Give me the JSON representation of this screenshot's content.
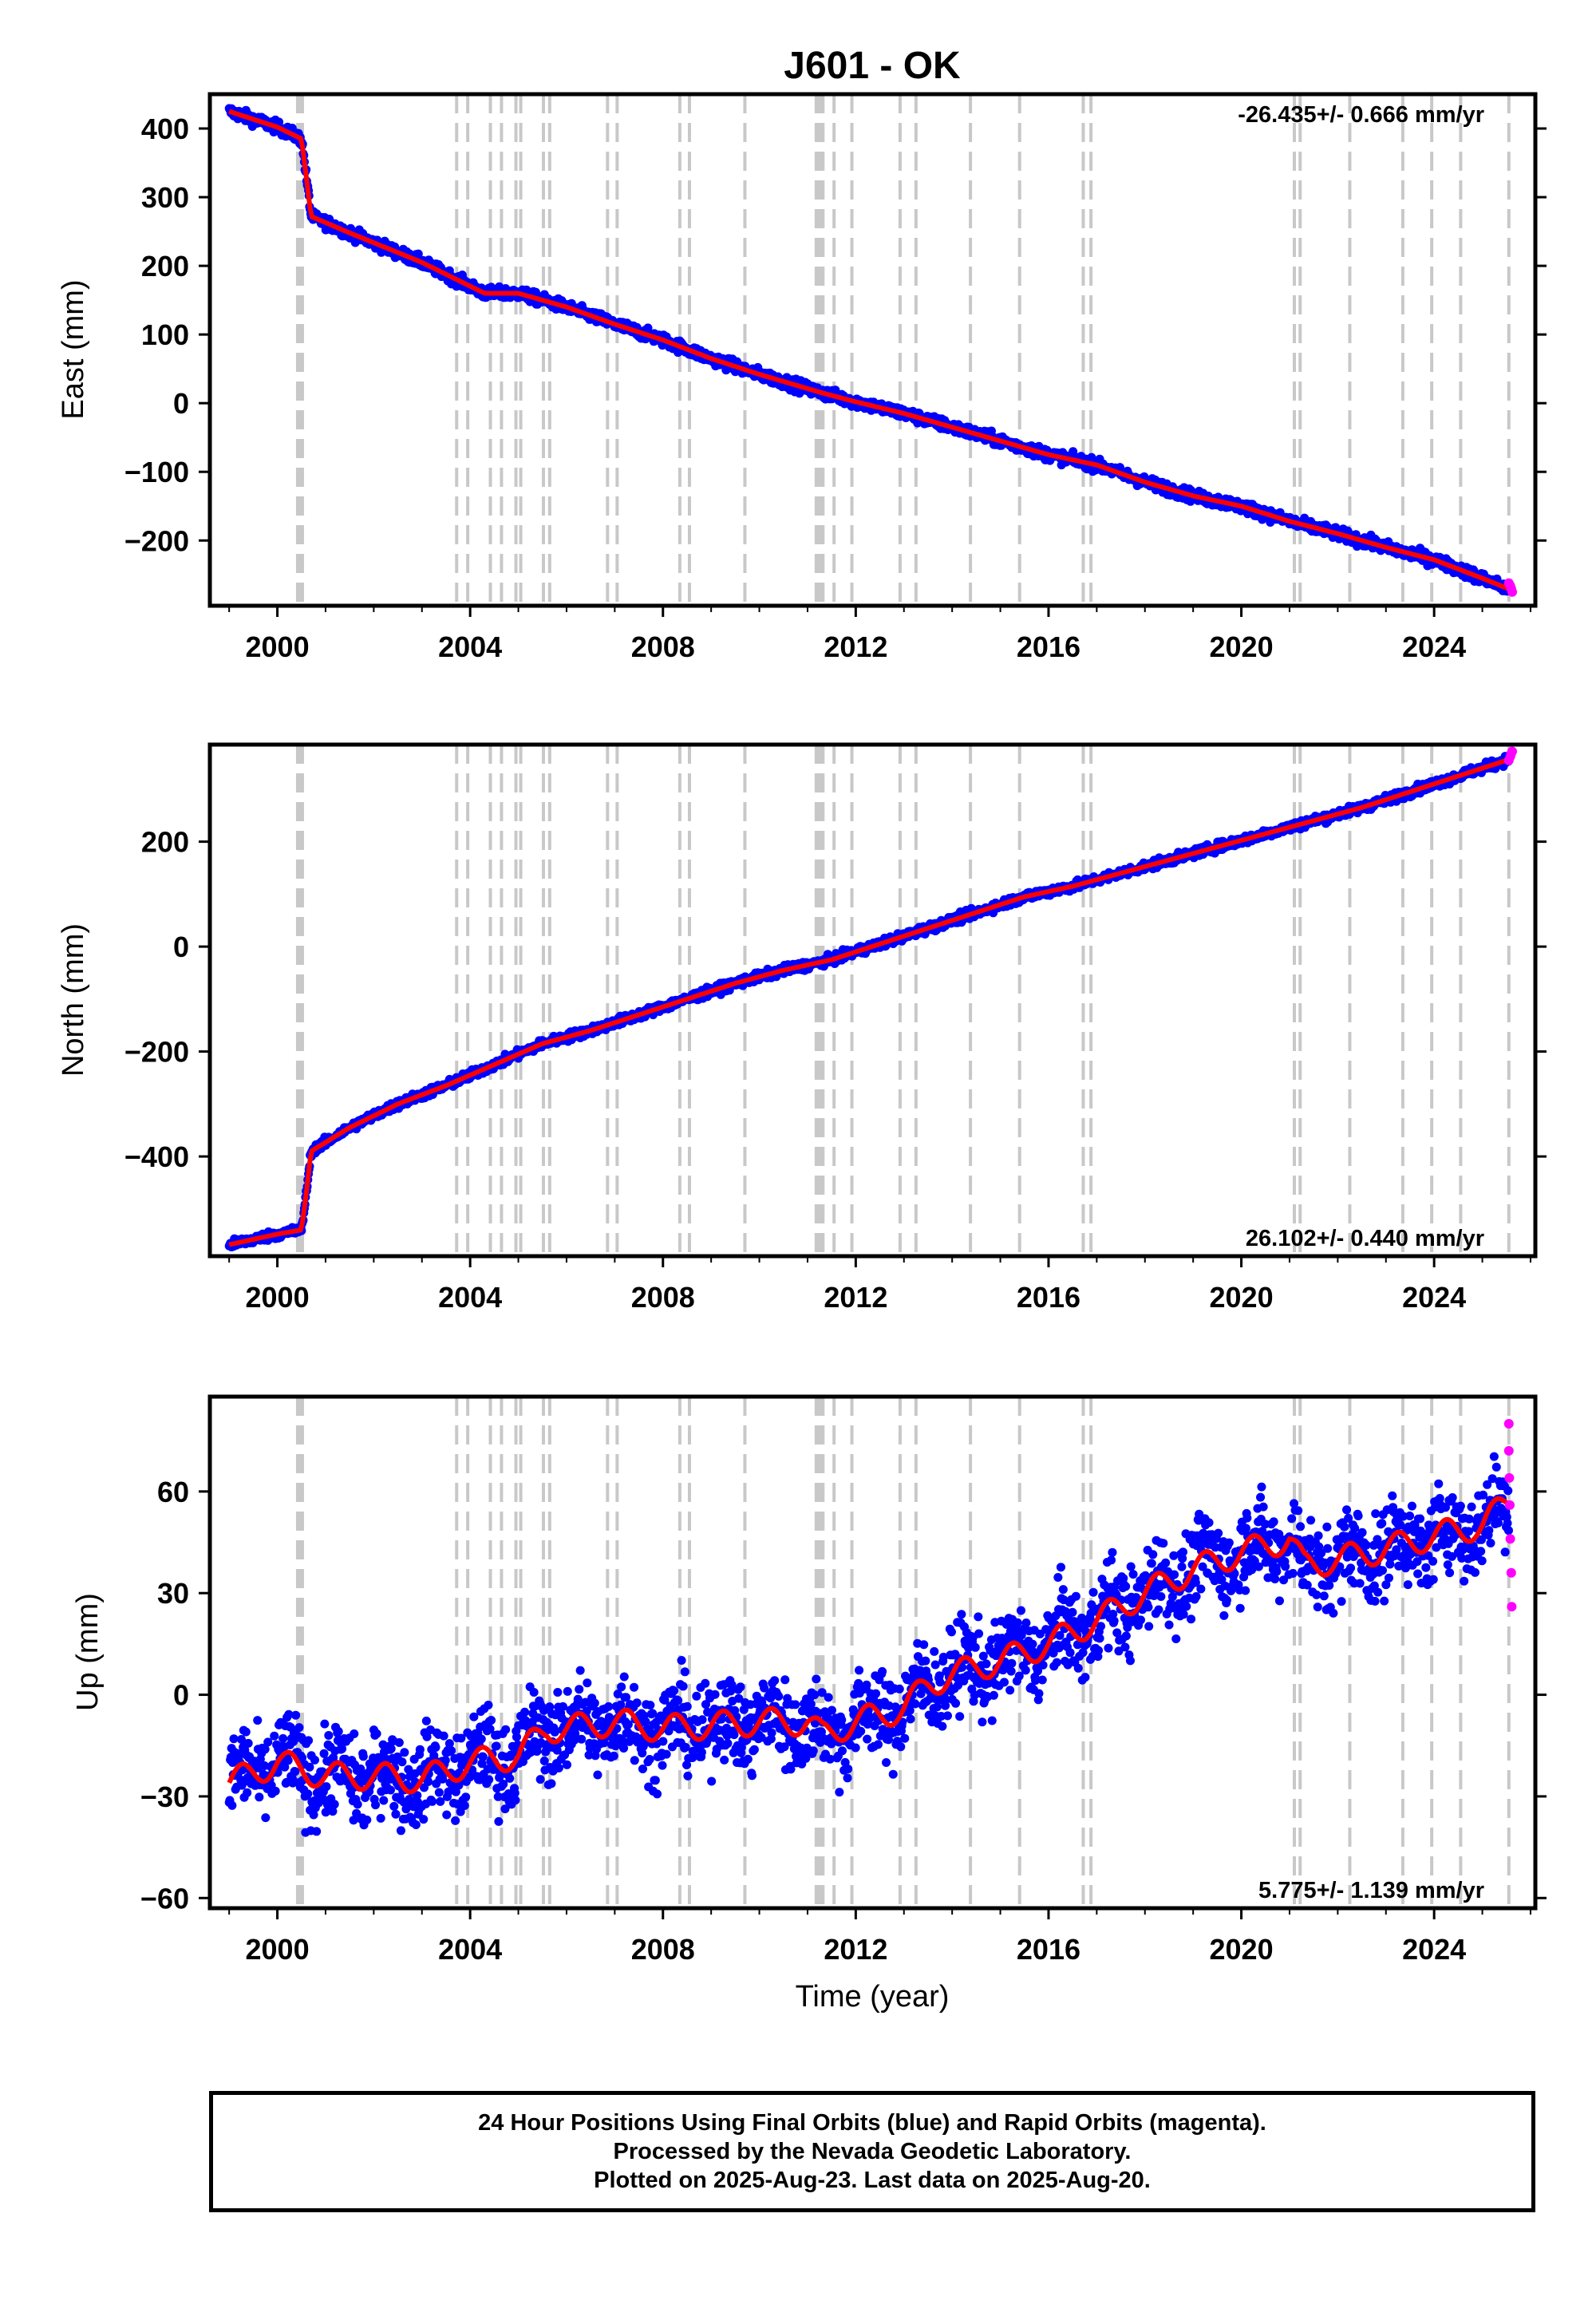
{
  "title": "J601 - OK",
  "caption": {
    "line1": "24 Hour Positions Using Final Orbits (blue) and Rapid Orbits (magenta).",
    "line2": "Processed by the Nevada Geodetic Laboratory.",
    "line3": "Plotted on 2025-Aug-23. Last data on 2025-Aug-20."
  },
  "colors": {
    "final_orbits": "#0000ff",
    "rapid_orbits": "#ff00ff",
    "model": "#ff0000",
    "equipment_change_lines": "#c8c8c8"
  },
  "event_lines": [
    2000.42,
    2000.47,
    2000.52,
    2003.72,
    2003.95,
    2004.42,
    2004.65,
    2004.95,
    2005.05,
    2005.52,
    2005.65,
    2006.85,
    2007.05,
    2008.35,
    2008.55,
    2009.7,
    2011.18,
    2011.22,
    2011.27,
    2011.32,
    2011.55,
    2011.92,
    2012.92,
    2013.25,
    2014.38,
    2015.4,
    2016.72,
    2016.88,
    2021.1,
    2021.22,
    2022.25,
    2023.35,
    2023.95,
    2024.55,
    2025.55
  ],
  "chart_data": [
    {
      "type": "scatter",
      "name": "east",
      "ylabel": "East (mm)",
      "xlabel": "",
      "rate_text": "-26.435+/- 0.666 mm/yr",
      "rate_position": "top-right",
      "xlim": [
        1998.6,
        2026.1
      ],
      "ylim": [
        -295,
        450
      ],
      "x_ticks": [
        2000,
        2004,
        2008,
        2012,
        2016,
        2020,
        2024
      ],
      "x_tick_labels": [
        "2000",
        "2004",
        "2008",
        "2012",
        "2016",
        "2020",
        "2024"
      ],
      "y_ticks": [
        -200,
        -100,
        0,
        100,
        200,
        300,
        400
      ],
      "y_tick_labels": [
        "−200",
        "−100",
        "0",
        "100",
        "200",
        "300",
        "400"
      ],
      "trend": [
        [
          1999.0,
          425
        ],
        [
          2000.0,
          402
        ],
        [
          2000.5,
          385
        ],
        [
          2000.6,
          330
        ],
        [
          2000.7,
          272
        ],
        [
          2001.5,
          248
        ],
        [
          2003.0,
          205
        ],
        [
          2004.3,
          160
        ],
        [
          2005.0,
          160
        ],
        [
          2006.0,
          140
        ],
        [
          2007.0,
          115
        ],
        [
          2008.0,
          92
        ],
        [
          2009.0,
          65
        ],
        [
          2010.0,
          42
        ],
        [
          2011.3,
          15
        ],
        [
          2012.0,
          2
        ],
        [
          2013.0,
          -15
        ],
        [
          2014.0,
          -35
        ],
        [
          2015.0,
          -55
        ],
        [
          2016.0,
          -75
        ],
        [
          2017.0,
          -90
        ],
        [
          2018.0,
          -115
        ],
        [
          2019.0,
          -135
        ],
        [
          2020.0,
          -150
        ],
        [
          2021.0,
          -172
        ],
        [
          2022.0,
          -190
        ],
        [
          2023.0,
          -210
        ],
        [
          2024.0,
          -228
        ],
        [
          2025.0,
          -255
        ],
        [
          2025.6,
          -272
        ]
      ],
      "scatter_noise": 6,
      "rapid_points": [
        [
          2025.55,
          -262
        ],
        [
          2025.58,
          -266
        ],
        [
          2025.6,
          -270
        ],
        [
          2025.62,
          -275
        ]
      ]
    },
    {
      "type": "scatter",
      "name": "north",
      "ylabel": "North (mm)",
      "xlabel": "",
      "rate_text": "26.102+/- 0.440 mm/yr",
      "rate_position": "bottom-right",
      "xlim": [
        1998.6,
        2026.1
      ],
      "ylim": [
        -590,
        385
      ],
      "x_ticks": [
        2000,
        2004,
        2008,
        2012,
        2016,
        2020,
        2024
      ],
      "x_tick_labels": [
        "2000",
        "2004",
        "2008",
        "2012",
        "2016",
        "2020",
        "2024"
      ],
      "y_ticks": [
        -400,
        -200,
        0,
        200
      ],
      "y_tick_labels": [
        "−400",
        "−200",
        "0",
        "200"
      ],
      "trend": [
        [
          1999.0,
          -568
        ],
        [
          1999.5,
          -558
        ],
        [
          2000.0,
          -548
        ],
        [
          2000.5,
          -540
        ],
        [
          2000.6,
          -470
        ],
        [
          2000.7,
          -390
        ],
        [
          2001.5,
          -345
        ],
        [
          2002.5,
          -300
        ],
        [
          2003.5,
          -265
        ],
        [
          2004.5,
          -225
        ],
        [
          2005.5,
          -185
        ],
        [
          2006.5,
          -160
        ],
        [
          2007.5,
          -130
        ],
        [
          2008.5,
          -100
        ],
        [
          2009.5,
          -70
        ],
        [
          2010.5,
          -45
        ],
        [
          2011.5,
          -25
        ],
        [
          2012.5,
          5
        ],
        [
          2013.5,
          35
        ],
        [
          2014.5,
          65
        ],
        [
          2015.5,
          95
        ],
        [
          2016.5,
          115
        ],
        [
          2017.5,
          140
        ],
        [
          2018.5,
          165
        ],
        [
          2019.5,
          190
        ],
        [
          2020.5,
          215
        ],
        [
          2021.5,
          240
        ],
        [
          2022.5,
          265
        ],
        [
          2023.5,
          295
        ],
        [
          2024.5,
          325
        ],
        [
          2025.6,
          358
        ]
      ],
      "scatter_noise": 6,
      "rapid_points": [
        [
          2025.55,
          355
        ],
        [
          2025.58,
          362
        ],
        [
          2025.6,
          368
        ],
        [
          2025.62,
          372
        ]
      ]
    },
    {
      "type": "scatter",
      "name": "up",
      "ylabel": "Up (mm)",
      "xlabel": "Time (year)",
      "rate_text": "5.775+/- 1.139 mm/yr",
      "rate_position": "bottom-right",
      "xlim": [
        1998.6,
        2026.1
      ],
      "ylim": [
        -63,
        88
      ],
      "x_ticks": [
        2000,
        2004,
        2008,
        2012,
        2016,
        2020,
        2024
      ],
      "x_tick_labels": [
        "2000",
        "2004",
        "2008",
        "2012",
        "2016",
        "2020",
        "2024"
      ],
      "y_ticks": [
        -60,
        -30,
        0,
        30,
        60
      ],
      "y_tick_labels": [
        "−60",
        "−30",
        "0",
        "30",
        "60"
      ],
      "trend": [
        [
          1999.0,
          -26
        ],
        [
          2000.0,
          -20
        ],
        [
          2001.0,
          -24
        ],
        [
          2002.0,
          -24
        ],
        [
          2003.0,
          -25
        ],
        [
          2004.0,
          -20
        ],
        [
          2005.0,
          -18
        ],
        [
          2005.6,
          -10
        ],
        [
          2006.0,
          -10
        ],
        [
          2007.0,
          -8
        ],
        [
          2008.0,
          -10
        ],
        [
          2009.0,
          -9
        ],
        [
          2010.0,
          -8
        ],
        [
          2011.0,
          -8
        ],
        [
          2011.3,
          -12
        ],
        [
          2012.0,
          -8
        ],
        [
          2013.0,
          -4
        ],
        [
          2013.5,
          3
        ],
        [
          2014.0,
          6
        ],
        [
          2015.0,
          10
        ],
        [
          2016.0,
          15
        ],
        [
          2017.0,
          22
        ],
        [
          2018.0,
          30
        ],
        [
          2019.0,
          37
        ],
        [
          2020.0,
          42
        ],
        [
          2021.0,
          46
        ],
        [
          2021.3,
          38
        ],
        [
          2022.0,
          40
        ],
        [
          2023.0,
          43
        ],
        [
          2024.0,
          47
        ],
        [
          2025.0,
          50
        ],
        [
          2025.6,
          58
        ]
      ],
      "scatter_noise": 9,
      "seasonal_amplitude": 4,
      "rapid_points": [
        [
          2025.55,
          80
        ],
        [
          2025.55,
          72
        ],
        [
          2025.56,
          64
        ],
        [
          2025.57,
          56
        ],
        [
          2025.58,
          46
        ],
        [
          2025.6,
          36
        ],
        [
          2025.61,
          26
        ]
      ]
    }
  ]
}
